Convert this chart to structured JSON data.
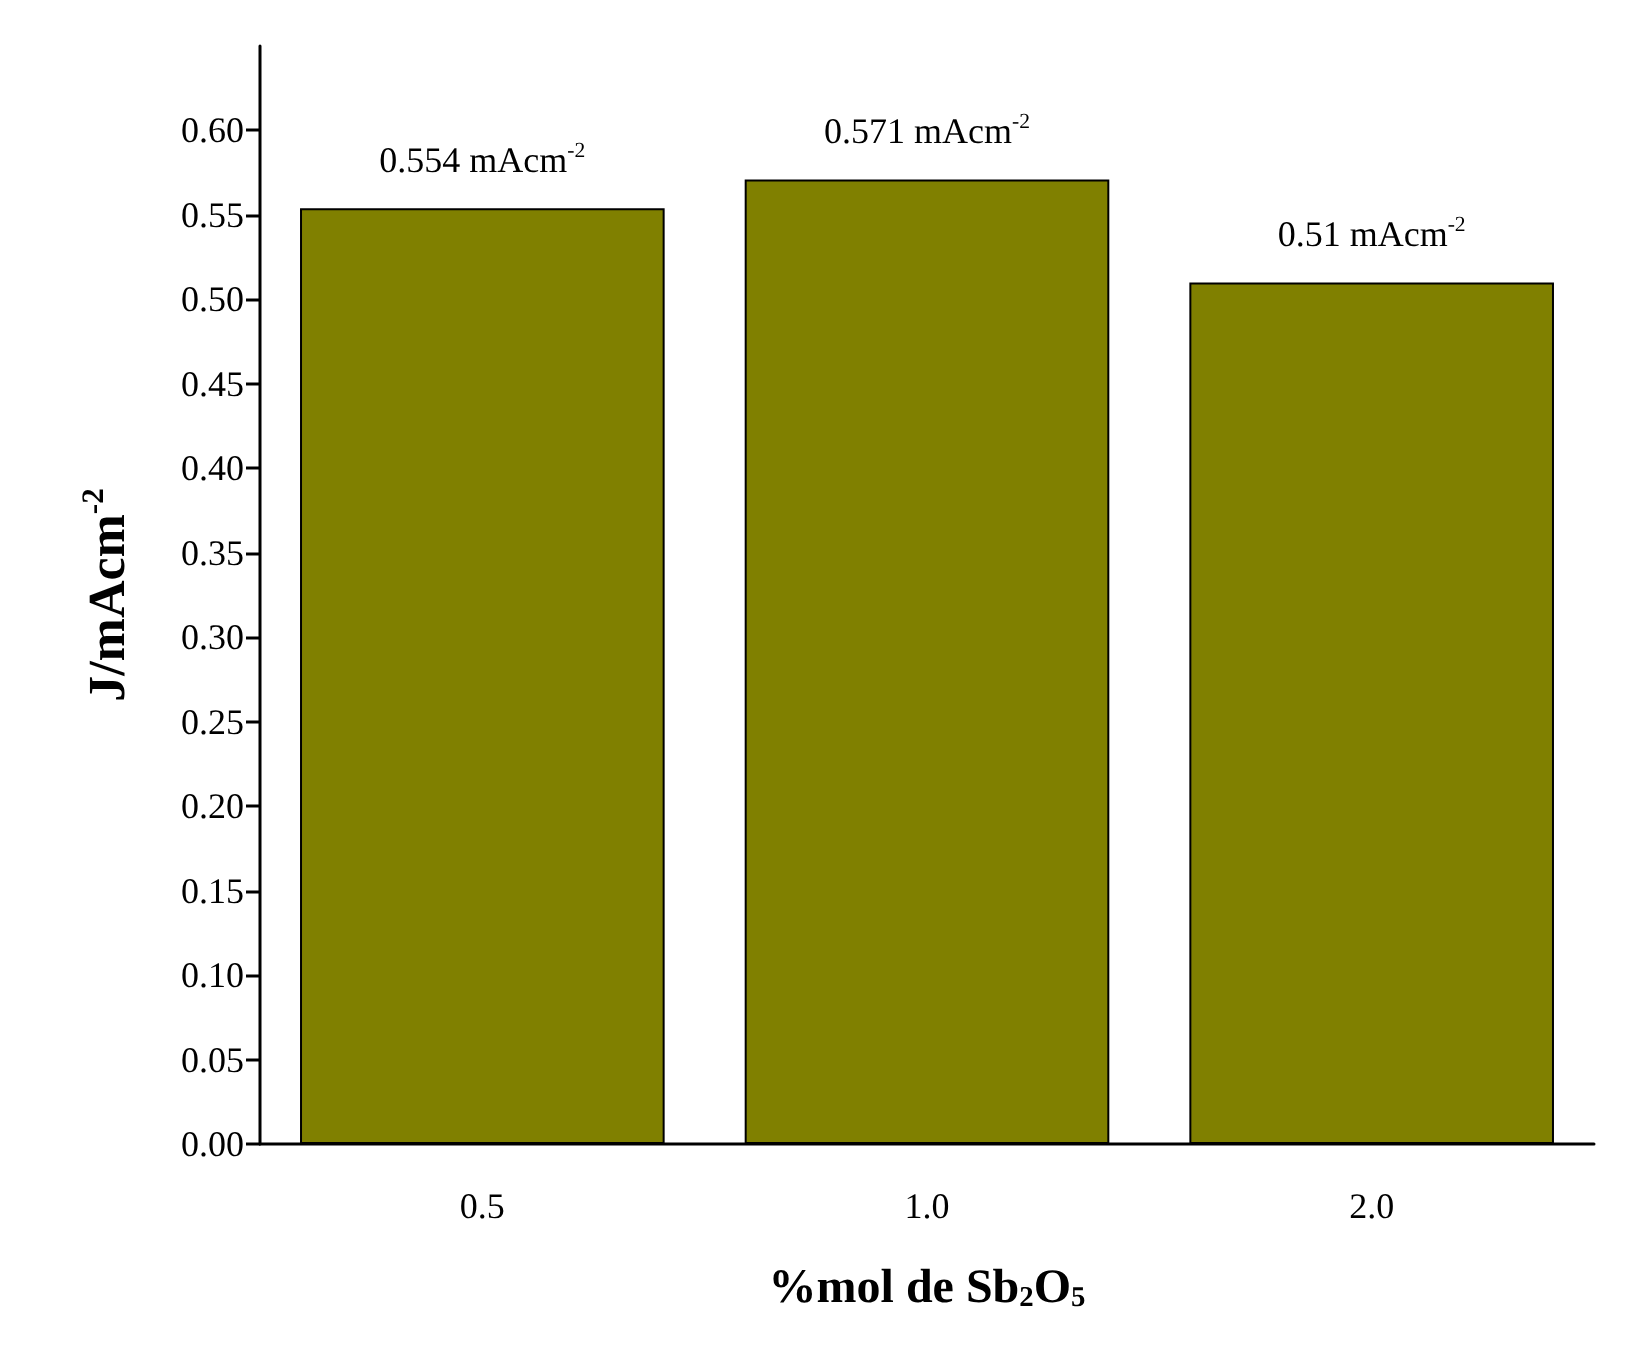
{
  "chart_data": {
    "type": "bar",
    "xlabel": "%mol de Sb$_{2}$O$_{5}$",
    "ylabel": "J/mAcm$^{-2}$",
    "categories": [
      "0.5",
      "1.0",
      "2.0"
    ],
    "values": [
      0.554,
      0.571,
      0.51
    ],
    "value_labels": [
      "0.554 mAcm$^{-2}$",
      "0.571 mAcm$^{-2}$",
      "0.51 mAcm$^{-2}$"
    ],
    "color": "#808000",
    "ylim": [
      0,
      0.65
    ],
    "yticks": [
      {
        "value": 0,
        "label": "0.00"
      },
      {
        "value": 0.05,
        "label": "0.05"
      },
      {
        "value": 0.1,
        "label": "0.10"
      },
      {
        "value": 0.15,
        "label": "0.15"
      },
      {
        "value": 0.2,
        "label": "0.20"
      },
      {
        "value": 0.25,
        "label": "0.25"
      },
      {
        "value": 0.3,
        "label": "0.30"
      },
      {
        "value": 0.35,
        "label": "0.35"
      },
      {
        "value": 0.4,
        "label": "0.40"
      },
      {
        "value": 0.45,
        "label": "0.45"
      },
      {
        "value": 0.5,
        "label": "0.50"
      },
      {
        "value": 0.55,
        "label": "0.55"
      },
      {
        "value": 0.6,
        "label": "0.60"
      }
    ],
    "grid": false
  }
}
